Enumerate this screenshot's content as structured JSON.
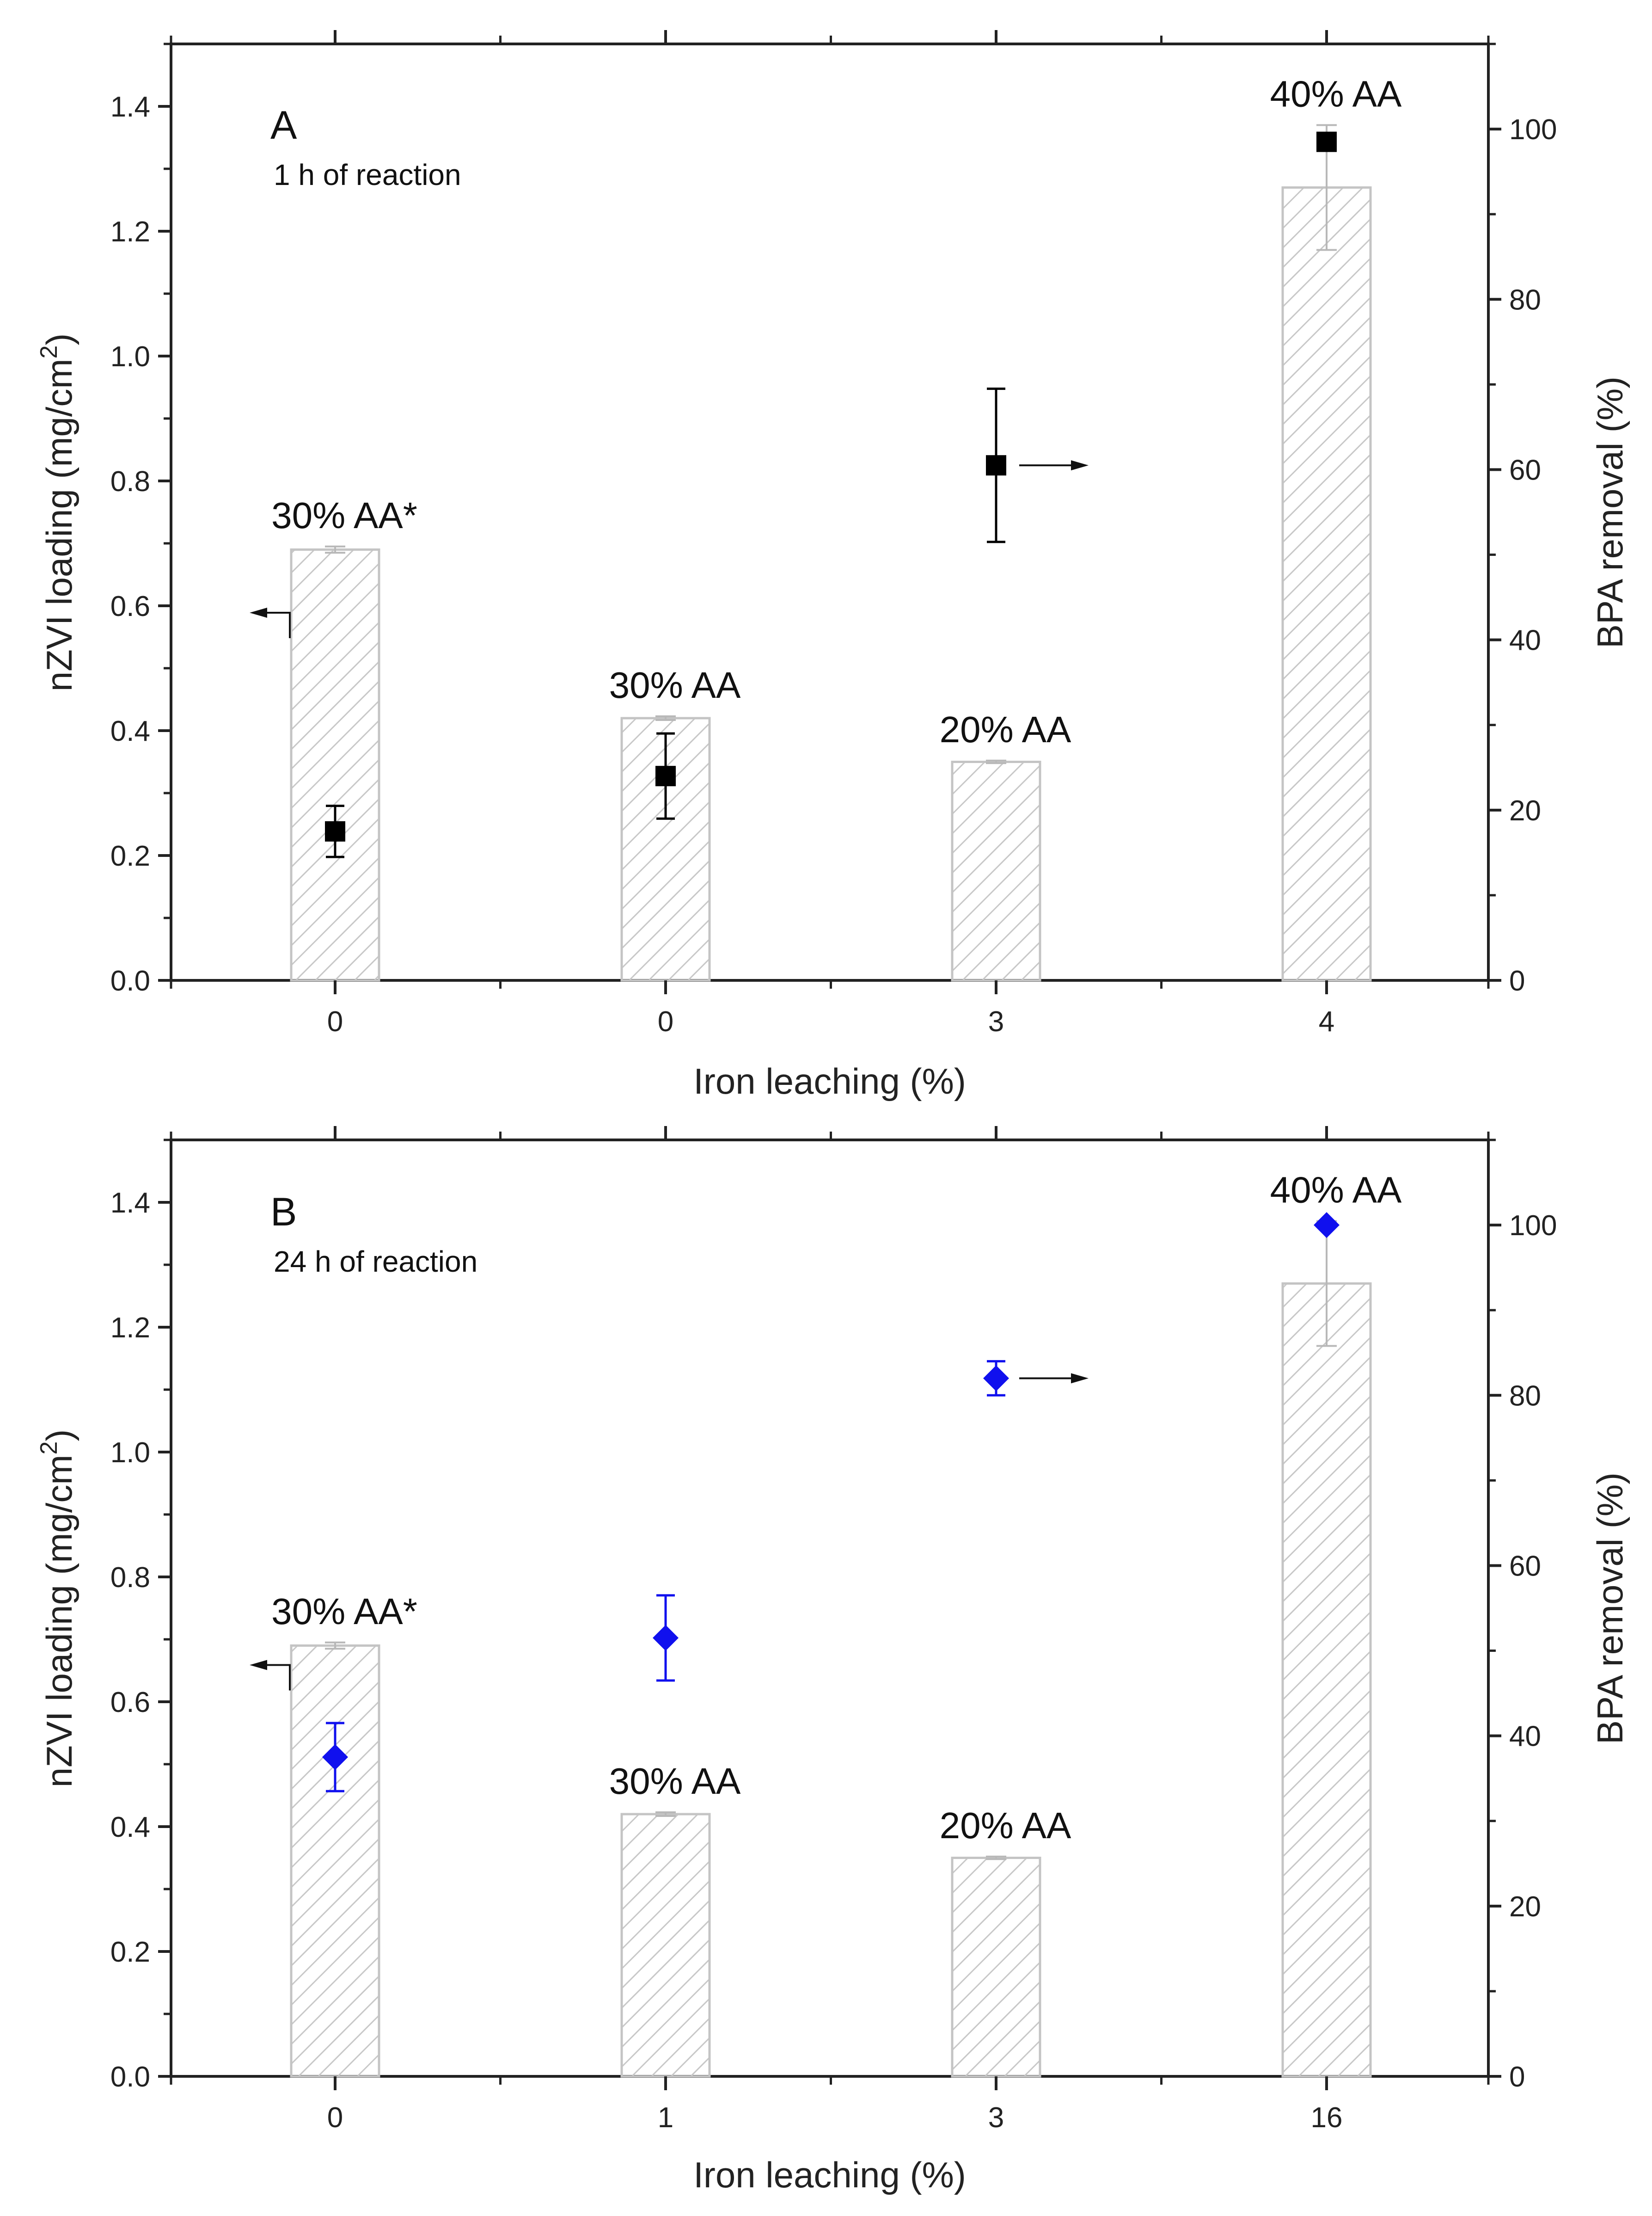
{
  "chart_data": [
    {
      "type": "bar",
      "panel_letter": "A",
      "panel_subtitle": "1 h of reaction",
      "categories": [
        "0",
        "0",
        "3",
        "4"
      ],
      "xlabel": "Iron leaching (%)",
      "ylabel_left_main": "nZVI loading (mg/cm",
      "ylabel_left_sup": "2",
      "ylabel_left_end": ")",
      "ylabel_right": "BPA removal (%)",
      "ylim_left": [
        0,
        1.5
      ],
      "ylim_right": [
        0,
        110
      ],
      "yticks_left": [
        "0.0",
        "0.2",
        "0.4",
        "0.6",
        "0.8",
        "1.0",
        "1.2",
        "1.4"
      ],
      "yticks_right": [
        "0",
        "20",
        "40",
        "60",
        "80",
        "100"
      ],
      "series": [
        {
          "name": "nZVI loading",
          "axis": "left",
          "kind": "hatched-bar",
          "values": [
            0.69,
            0.42,
            0.35,
            1.27
          ],
          "errors": [
            0.005,
            0.003,
            0.002,
            0.1
          ],
          "labels": [
            "30% AA*",
            "30% AA",
            "20% AA",
            "40% AA"
          ]
        },
        {
          "name": "BPA removal",
          "axis": "right",
          "kind": "square-marker",
          "values": [
            17.5,
            24,
            60.5,
            98.5
          ],
          "errors": [
            3,
            5,
            9,
            0
          ],
          "color": "#000000"
        }
      ],
      "arrows": [
        {
          "points_to": "left",
          "category": "0",
          "value": 0.6
        },
        {
          "points_to": "right",
          "category": "3",
          "value": 60.5
        }
      ]
    },
    {
      "type": "bar",
      "panel_letter": "B",
      "panel_subtitle": "24 h of reaction",
      "categories": [
        "0",
        "1",
        "3",
        "16"
      ],
      "xlabel": "Iron leaching (%)",
      "ylabel_left_main": "nZVI loading (mg/cm",
      "ylabel_left_sup": "2",
      "ylabel_left_end": ")",
      "ylabel_right": "BPA removal (%)",
      "ylim_left": [
        0,
        1.5
      ],
      "ylim_right": [
        0,
        110
      ],
      "yticks_left": [
        "0.0",
        "0.2",
        "0.4",
        "0.6",
        "0.8",
        "1.0",
        "1.2",
        "1.4"
      ],
      "yticks_right": [
        "0",
        "20",
        "40",
        "60",
        "80",
        "100"
      ],
      "series": [
        {
          "name": "nZVI loading",
          "axis": "left",
          "kind": "hatched-bar",
          "values": [
            0.69,
            0.42,
            0.35,
            1.27
          ],
          "errors": [
            0.005,
            0.003,
            0.002,
            0.1
          ],
          "labels": [
            "30% AA*",
            "30% AA",
            "20% AA",
            "40% AA"
          ]
        },
        {
          "name": "BPA removal",
          "axis": "right",
          "kind": "diamond-marker",
          "values": [
            37.5,
            51.5,
            82,
            100
          ],
          "errors": [
            4,
            5,
            2,
            0
          ],
          "color": "#1010ee"
        }
      ],
      "arrows": [
        {
          "points_to": "left",
          "category": "0",
          "value": 0.67
        },
        {
          "points_to": "right",
          "category": "3",
          "value": 82
        }
      ]
    }
  ]
}
